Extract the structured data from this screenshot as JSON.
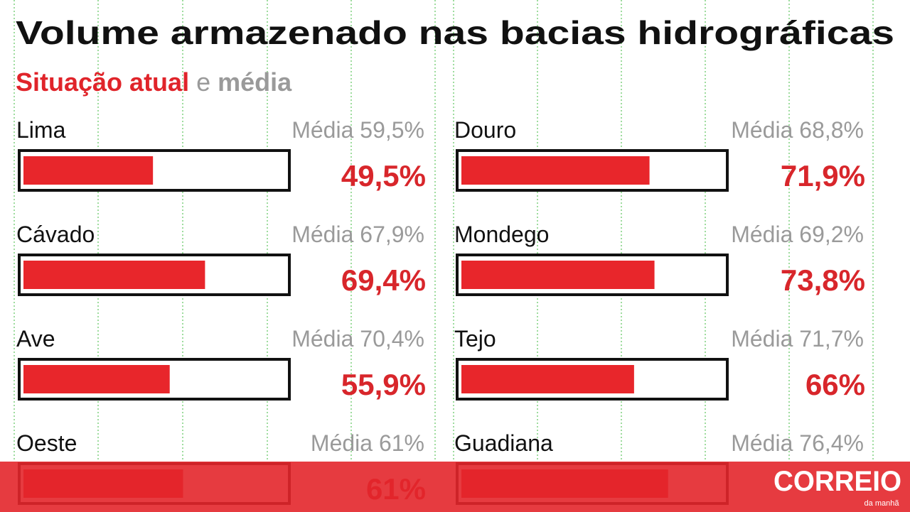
{
  "chart_data": {
    "type": "bar",
    "title": "Volume armazenado nas bacias hidrográficas",
    "subtitle_joiner": "e",
    "average_prefix": "Média",
    "categories": [
      "Lima",
      "Cávado",
      "Ave",
      "Oeste",
      "Douro",
      "Mondego",
      "Tejo",
      "Guadiana"
    ],
    "series": [
      {
        "name": "Situação atual",
        "color": "#e8262b",
        "values": [
          49.5,
          69.4,
          55.9,
          61,
          71.9,
          73.8,
          66,
          79
        ],
        "value_labels": [
          "49,5%",
          "69,4%",
          "55,9%",
          "61%",
          "71,9%",
          "73,8%",
          "66%",
          null
        ]
      },
      {
        "name": "média",
        "color": "#9a9a9a",
        "values": [
          59.5,
          67.9,
          70.4,
          61,
          68.8,
          69.2,
          71.7,
          76.4
        ],
        "value_labels": [
          "59,5%",
          "67,9%",
          "70,4%",
          "61%",
          "68,8%",
          "69,2%",
          "71,7%",
          "76,4%"
        ]
      }
    ],
    "xlim": [
      0,
      100
    ]
  },
  "banner": {
    "brand": "CORREIO",
    "tagline": "da manhã"
  }
}
